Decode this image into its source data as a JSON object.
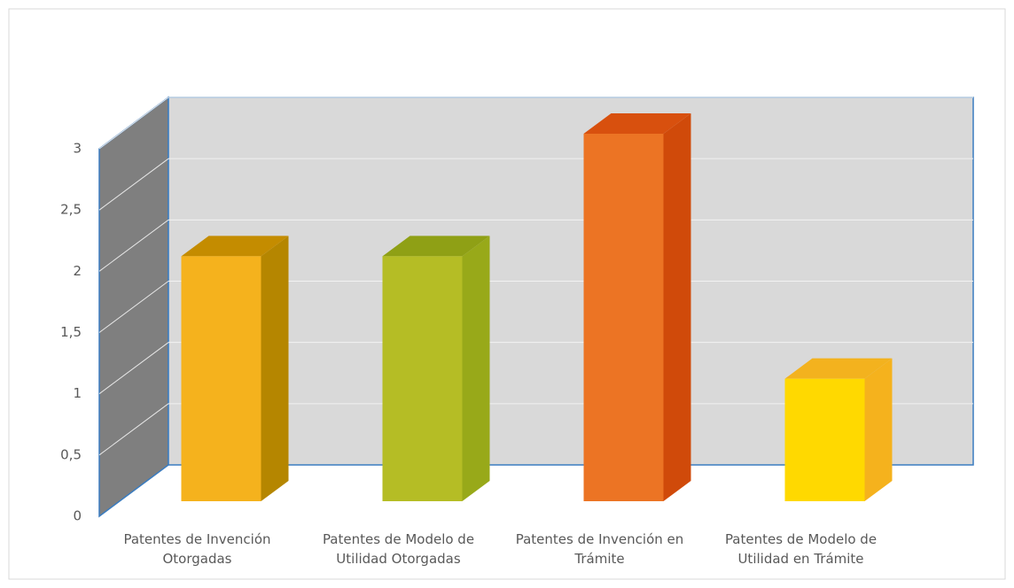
{
  "chart_data": {
    "type": "bar3d",
    "categories": [
      "Patentes de Invención Otorgadas",
      "Patentes de Modelo de Utilidad Otorgadas",
      "Patentes de Invención en Trámite",
      "Patentes de Modelo de Utilidad en Trámite"
    ],
    "values": [
      2,
      2,
      3,
      1
    ],
    "colors": [
      "#f5b21d",
      "#b5bd25",
      "#ec7424",
      "#ffd900"
    ],
    "side_colors": [
      "#b58600",
      "#98a919",
      "#d04a0a",
      "#f5b21d"
    ],
    "top_colors": [
      "#c48c00",
      "#8fa015",
      "#d8500e",
      "#f3b21e"
    ],
    "ylim": [
      0,
      3
    ],
    "yticks": [
      0,
      {
        "value": 0.5,
        "label": "0,5"
      },
      1,
      {
        "value": 1.5,
        "label": "1,5"
      },
      2,
      {
        "value": 2.5,
        "label": "2,5"
      },
      3
    ],
    "grid": true
  }
}
